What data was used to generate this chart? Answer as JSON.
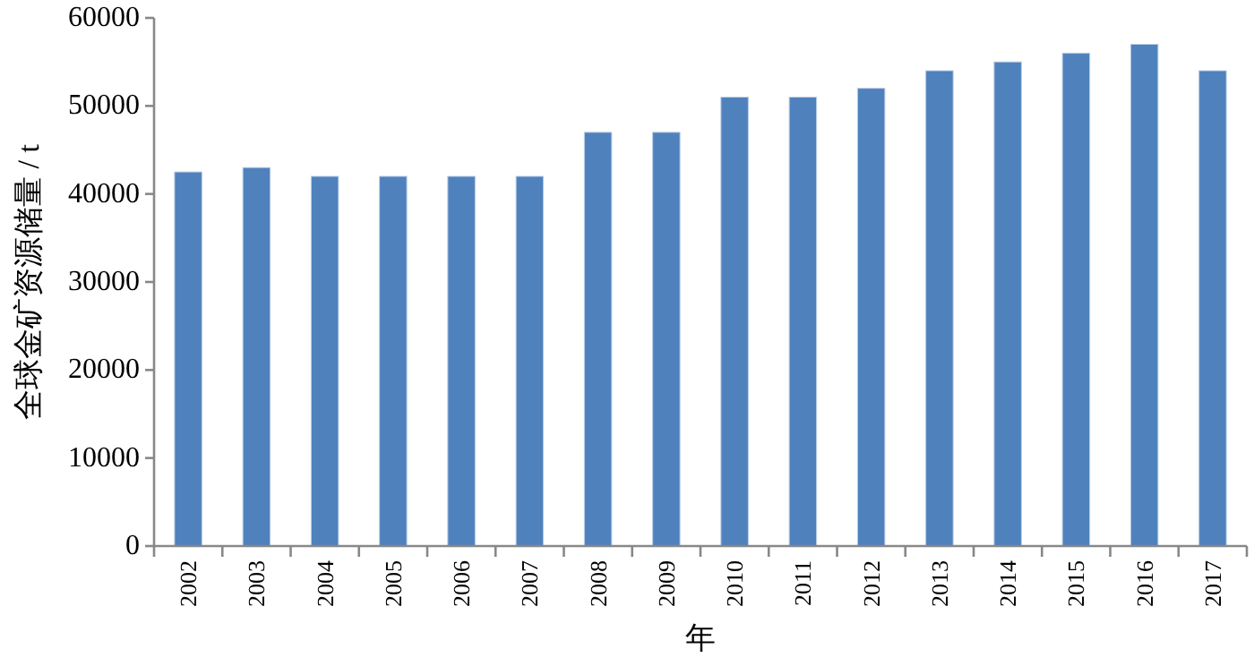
{
  "chart_data": {
    "type": "bar",
    "xlabel": "年",
    "ylabel": "全球金矿资源储量 / t",
    "categories": [
      "2002",
      "2003",
      "2004",
      "2005",
      "2006",
      "2007",
      "2008",
      "2009",
      "2010",
      "2011",
      "2012",
      "2013",
      "2014",
      "2015",
      "2016",
      "2017"
    ],
    "values": [
      42500,
      43000,
      42000,
      42000,
      42000,
      42000,
      47000,
      47000,
      51000,
      51000,
      52000,
      54000,
      55000,
      56000,
      57000,
      54000
    ],
    "color": "#4f81bd",
    "ylim": [
      0,
      60000
    ],
    "yticks": [
      0,
      10000,
      20000,
      30000,
      40000,
      50000,
      60000
    ],
    "grid": false,
    "legend": false
  }
}
